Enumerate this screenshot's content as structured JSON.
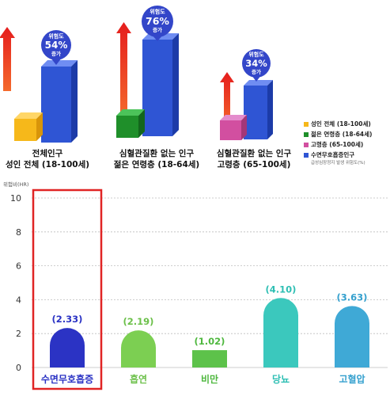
{
  "infographic": {
    "pins": [
      {
        "title": "위험도",
        "value": "54%",
        "suffix": "증가"
      },
      {
        "title": "위험도",
        "value": "76%",
        "suffix": "증가"
      },
      {
        "title": "위험도",
        "value": "34%",
        "suffix": "증가"
      }
    ],
    "group_labels": [
      {
        "line1": "전체인구",
        "line2": "성인 전체 (18-100세)"
      },
      {
        "line1": "심혈관질환 없는 인구",
        "line2": "젊은 연령층 (18-64세)"
      },
      {
        "line1": "심혈관질환 없는 인구",
        "line2": "고령층 (65-100세)"
      }
    ],
    "legend": [
      {
        "label": "성인 전체 (18-100세)",
        "color": "#f6b81a"
      },
      {
        "label": "젊은 연령층 (18-64세)",
        "color": "#1f8f2a"
      },
      {
        "label": "고령층 (65-100세)",
        "color": "#d24fa0"
      },
      {
        "label": "수면무호흡증인구",
        "color": "#2f55d4"
      }
    ],
    "legend_note": "급성심장정지 발생 위험도(%)"
  },
  "chart_data": {
    "type": "bar",
    "ylabel": "위험비(HR)",
    "ylim": [
      0,
      10
    ],
    "yticks": [
      "0",
      "2",
      "4",
      "6",
      "8",
      "10"
    ],
    "categories": [
      "수면무호흡증",
      "흡연",
      "비만",
      "당뇨",
      "고혈압"
    ],
    "values": [
      2.33,
      2.19,
      1.02,
      4.1,
      3.63
    ],
    "value_labels": [
      "(2.33)",
      "(2.19)",
      "(1.02)",
      "(4.10)",
      "(3.63)"
    ],
    "colors": [
      "#2b33c4",
      "#7ccf52",
      "#5dc24a",
      "#3bc8bd",
      "#3fa9d6"
    ],
    "label_colors": [
      "#2b33c4",
      "#6cc04a",
      "#4fb83f",
      "#2fbfb4",
      "#34a0ce"
    ],
    "highlight": "수면무호흡증",
    "highlight_color": "#e02424",
    "grid": true
  }
}
